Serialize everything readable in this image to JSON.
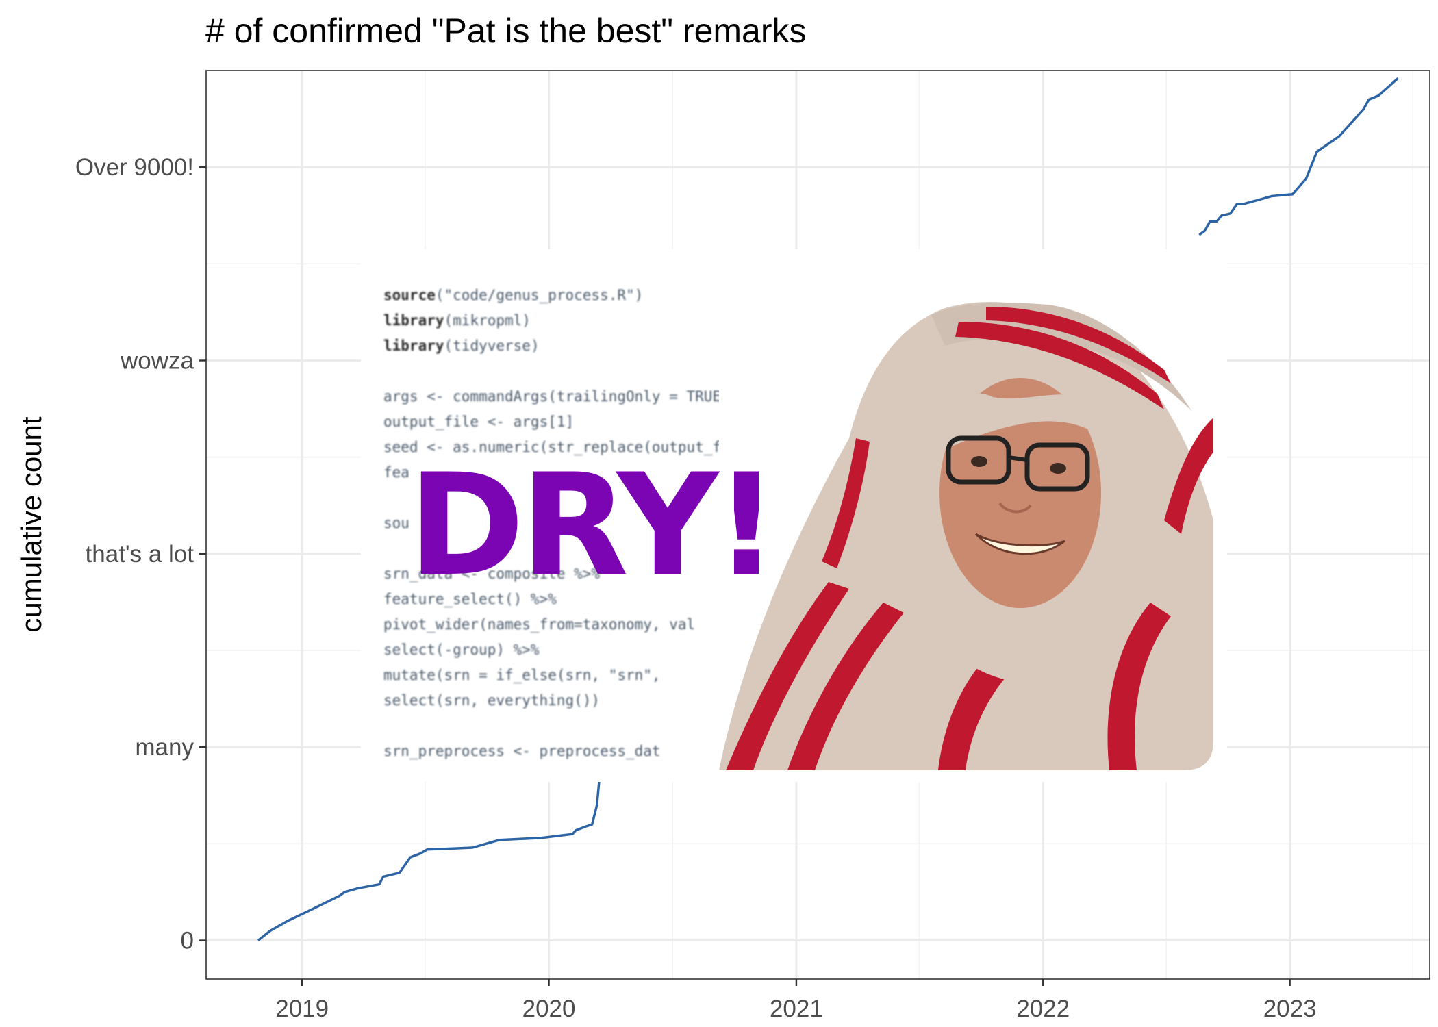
{
  "chart_data": {
    "type": "line",
    "title": "# of confirmed \"Pat is the best\" remarks",
    "xlabel": "",
    "ylabel": "cumulative count",
    "x_tick_labels": [
      "2019",
      "2020",
      "2021",
      "2022",
      "2023"
    ],
    "y_tick_labels": [
      "0",
      "many",
      "that's a lot",
      "wowza",
      "Over 9000!"
    ],
    "y_tick_values": [
      0,
      1,
      2,
      3,
      4
    ],
    "xlim": [
      "2018-08-12",
      "2023-07-27"
    ],
    "ylim": [
      -0.2,
      4.5
    ],
    "grid": true,
    "line_color": "#2c64a5",
    "series": [
      {
        "x": [
          "2018-10-28",
          "2018-11-15",
          "2018-12-10",
          "2019-01-15",
          "2019-02-25",
          "2019-03-05",
          "2019-03-25",
          "2019-04-25",
          "2019-05-01",
          "2019-05-25",
          "2019-06-10",
          "2019-06-25",
          "2019-07-05",
          "2019-09-10",
          "2019-10-20",
          "2019-12-20",
          "2020-02-05",
          "2020-02-10",
          "2020-02-25",
          "2020-03-05",
          "2020-03-12",
          "2020-03-18"
        ],
        "y": [
          0,
          0.05,
          0.1,
          0.16,
          0.23,
          0.25,
          0.27,
          0.29,
          0.33,
          0.35,
          0.43,
          0.45,
          0.47,
          0.48,
          0.52,
          0.53,
          0.55,
          0.57,
          0.59,
          0.6,
          0.7,
          0.92
        ]
      },
      {
        "x": [
          "2022-08-20",
          "2022-08-28",
          "2022-09-05",
          "2022-09-15",
          "2022-09-22",
          "2022-10-05",
          "2022-10-15",
          "2022-10-25",
          "2022-11-15",
          "2022-12-05",
          "2023-01-05",
          "2023-01-25",
          "2023-02-10",
          "2023-03-15",
          "2023-04-20",
          "2023-04-28",
          "2023-05-12",
          "2023-06-10"
        ],
        "y": [
          3.65,
          3.67,
          3.72,
          3.72,
          3.75,
          3.76,
          3.81,
          3.81,
          3.83,
          3.85,
          3.86,
          3.94,
          4.08,
          4.16,
          4.3,
          4.35,
          4.37,
          4.46
        ]
      }
    ]
  },
  "inset": {
    "headline": "DRY!",
    "code_lines": [
      "source(\"code/genus_process.R\")",
      "library(mikropml)",
      "library(tidyverse)",
      "",
      "args <- commandArgs(trailingOnly = TRUE)",
      "output_file <- args[1]",
      "seed <- as.numeric(str_replace(output_file, \".*_",
      "fea",
      "",
      "sou",
      "",
      "srn_data <- composite %>%",
      "  feature_select() %>%",
      "  pivot_wider(names_from=taxonomy, val",
      "  select(-group) %>%",
      "  mutate(srn = if_else(srn, \"srn\", ",
      "  select(srn, everything())",
      "",
      "srn_preprocess <- preprocess_dat"
    ],
    "photo_caption": "",
    "colors": {
      "headline": "#7b05b3",
      "towel_red": "#c0182e",
      "towel_tan": "#d9c9bc",
      "skin": "#c98a70"
    }
  }
}
